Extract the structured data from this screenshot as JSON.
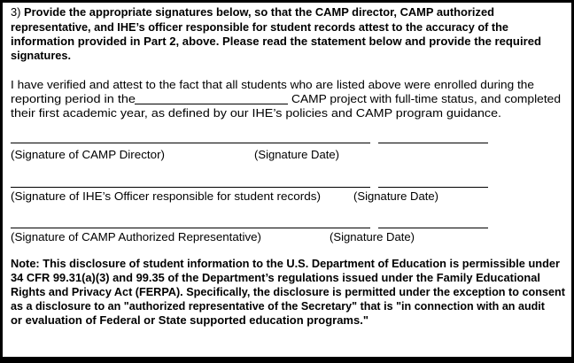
{
  "instructions": {
    "number": "3)",
    "lines": [
      "Provide the appropriate signatures below, so that the CAMP director, CAMP authorized",
      "representative, and IHE’s officer responsible for student records attest to the accuracy of the",
      "information provided in Part 2, above.  Please read the statement below and provide the required",
      "signatures."
    ]
  },
  "attestation": {
    "line1": "I have verified and attest to the fact that all students who are listed above were enrolled during the",
    "line2_before": "reporting period in the",
    "line2_after": "CAMP project with full-time status, and completed",
    "line3": "their first academic year, as defined by our IHE’s policies and CAMP program guidance."
  },
  "signatures": [
    {
      "label": "(Signature of CAMP Director)",
      "date_label": "(Signature Date)"
    },
    {
      "label": "(Signature of IHE’s Officer responsible for student records)",
      "date_label": "(Signature Date)"
    },
    {
      "label": "(Signature of CAMP Authorized Representative)",
      "date_label": "(Signature Date)"
    }
  ],
  "note": {
    "lines": [
      "Note:  This disclosure of student information to the U.S. Department of Education is permissible under",
      "34 CFR 99.31(a)(3) and 99.35 of the Department’s regulations issued under  the Family Educational",
      "Rights and Privacy Act (FERPA).   Specifically,  the disclosure is permitted under the exception to consent",
      "as a disclosure to an \"authorized representative of the Secretary\" that is \"in connection with an audit",
      "or evaluation of Federal or State supported education programs.\""
    ]
  }
}
